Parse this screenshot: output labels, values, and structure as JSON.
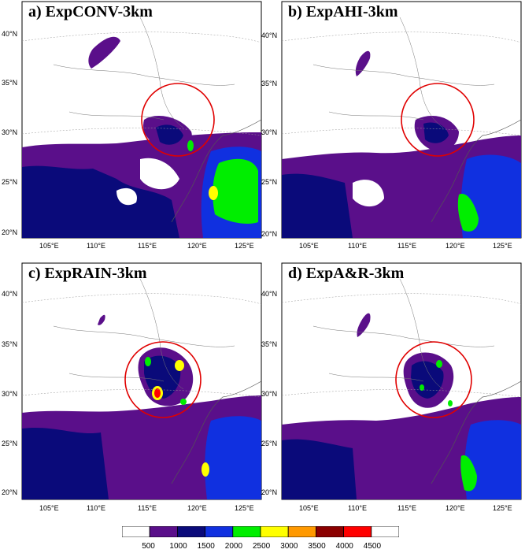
{
  "panels": [
    {
      "title": "a) ExpCONV-3km"
    },
    {
      "title": "b) ExpAHI-3km"
    },
    {
      "title": "c) ExpRAIN-3km"
    },
    {
      "title": "d) ExpA&R-3km"
    }
  ],
  "axes": {
    "latitudes": [
      "40°N",
      "35°N",
      "30°N",
      "25°N",
      "20°N"
    ],
    "longitudes": [
      "105°E",
      "110°E",
      "115°E",
      "120°E",
      "125°E"
    ]
  },
  "colorbar": {
    "levels": [
      "500",
      "1000",
      "1500",
      "2000",
      "2500",
      "3000",
      "3500",
      "4000",
      "4500"
    ],
    "colors": [
      "#ffffff",
      "#5a0f8a",
      "#0a0a7a",
      "#1030e0",
      "#00ee00",
      "#ffff00",
      "#ff9900",
      "#8b0000",
      "#ff0000",
      "#ffffff"
    ]
  },
  "highlight_color": "#e00000"
}
